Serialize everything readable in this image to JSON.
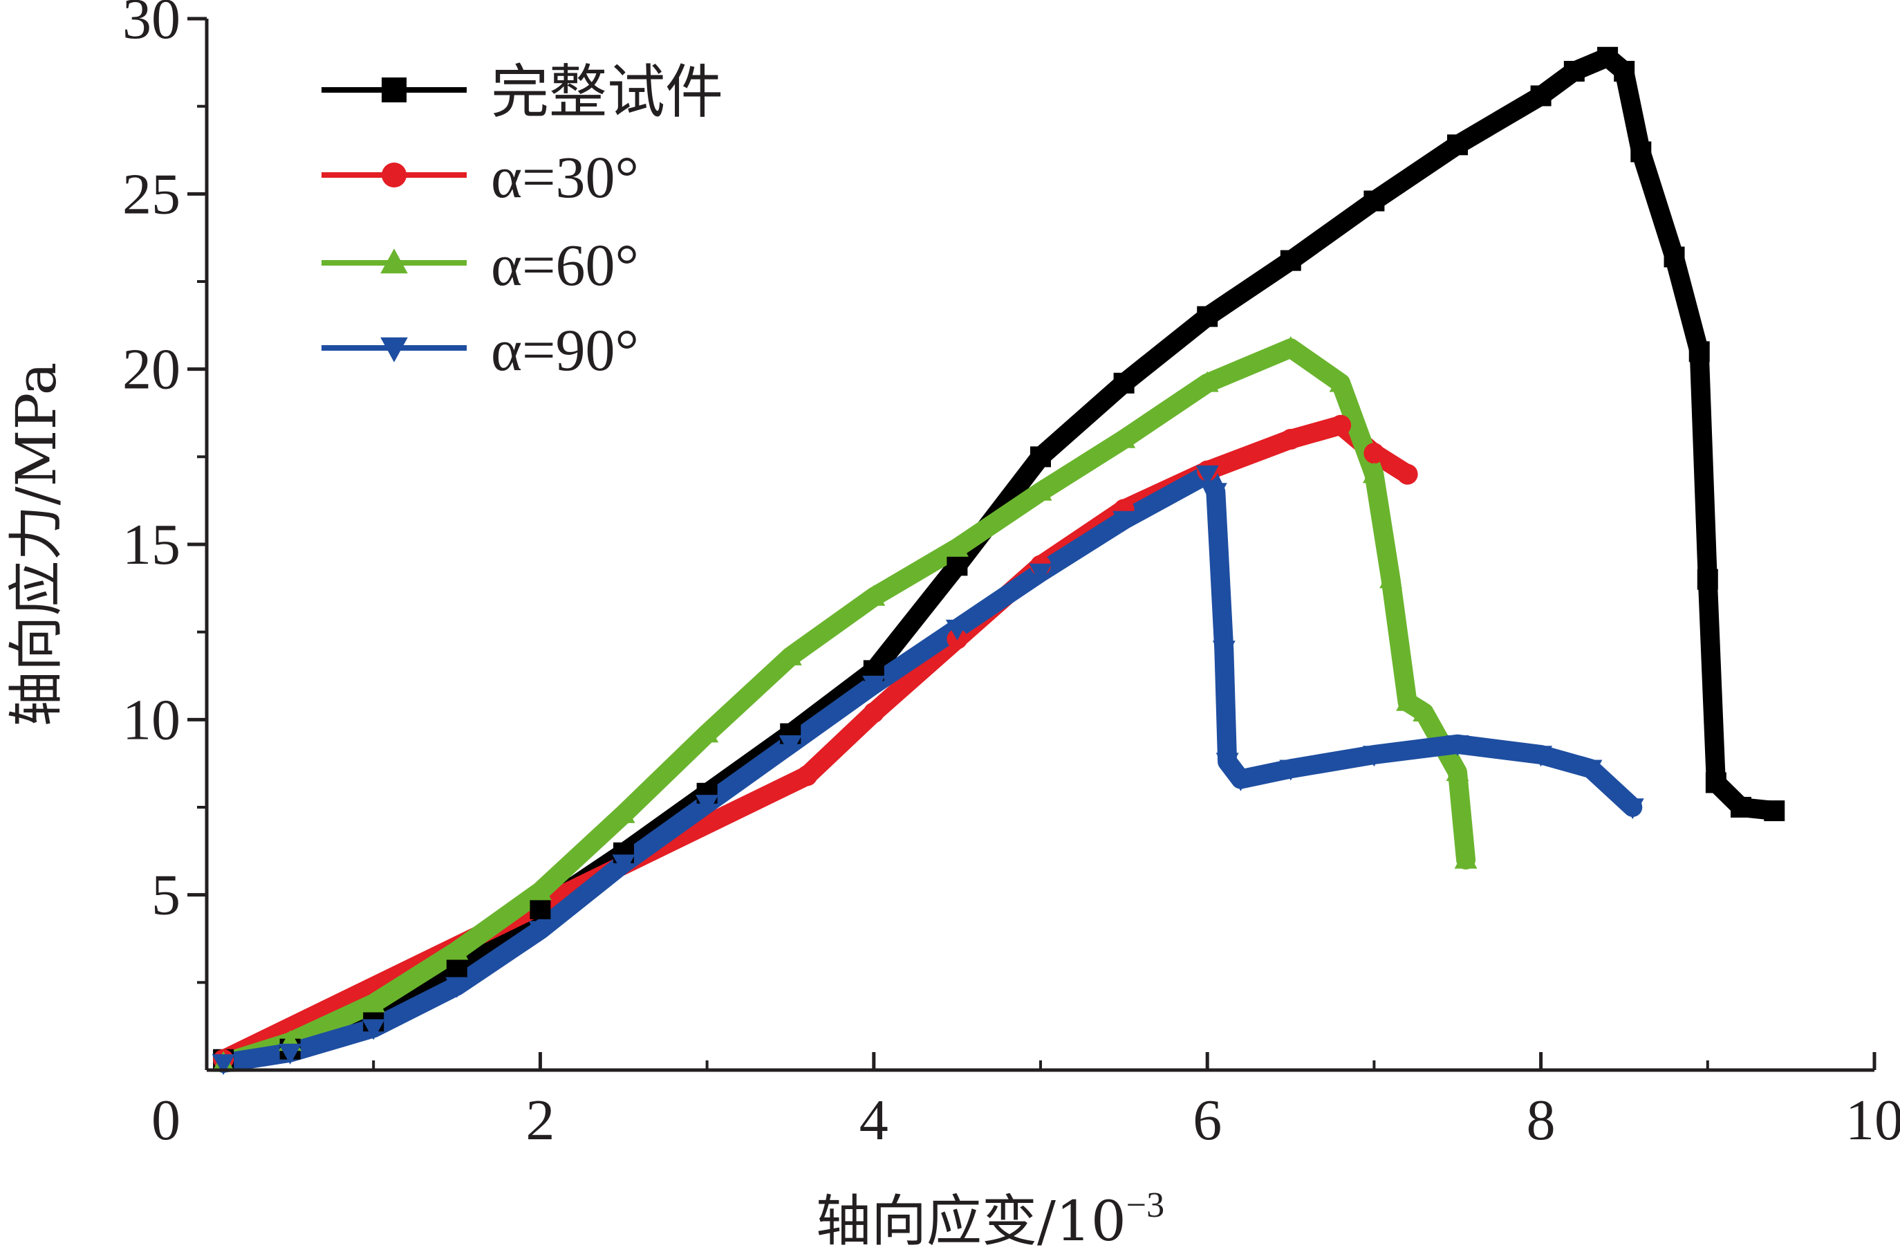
{
  "chart_data": {
    "type": "line",
    "xlabel": "轴向应变/10",
    "xlabel_exponent": "−3",
    "ylabel": "轴向应力/MPa",
    "xlim": [
      0,
      10
    ],
    "ylim": [
      0,
      30
    ],
    "x_ticks": [
      "0",
      "2",
      "4",
      "6",
      "8",
      "10"
    ],
    "y_ticks": [
      "5",
      "10",
      "15",
      "20",
      "25",
      "30"
    ],
    "grid": false,
    "legend_position": "top-left",
    "series": [
      {
        "name": "完整试件",
        "color": "#000000",
        "marker": "square",
        "x": [
          0.1,
          0.5,
          1.0,
          1.5,
          2.0,
          2.5,
          3.0,
          3.5,
          4.0,
          4.5,
          5.0,
          5.5,
          6.0,
          6.5,
          7.0,
          7.5,
          8.0,
          8.2,
          8.4,
          8.5,
          8.6,
          8.8,
          8.95,
          9.0,
          9.05,
          9.2,
          9.4
        ],
        "y": [
          0.3,
          0.6,
          1.4,
          2.9,
          4.6,
          6.2,
          7.9,
          9.6,
          11.4,
          14.4,
          17.5,
          19.6,
          21.5,
          23.1,
          24.8,
          26.4,
          27.8,
          28.5,
          28.9,
          28.5,
          26.2,
          23.2,
          20.5,
          14.0,
          8.2,
          7.5,
          7.4
        ]
      },
      {
        "name": "α=30°",
        "color": "#e31e24",
        "marker": "circle",
        "x": [
          0.1,
          3.6,
          4.0,
          4.5,
          5.0,
          5.5,
          6.0,
          6.5,
          6.8,
          7.0,
          7.2
        ],
        "y": [
          0.3,
          8.4,
          10.2,
          12.3,
          14.4,
          16.0,
          17.1,
          18.0,
          18.4,
          17.6,
          17.0
        ]
      },
      {
        "name": "α=60°",
        "color": "#6ab42d",
        "marker": "triangle-up",
        "x": [
          0.1,
          0.5,
          1.0,
          1.5,
          2.0,
          2.5,
          3.0,
          3.5,
          4.0,
          4.5,
          5.0,
          5.5,
          6.0,
          6.5,
          6.8,
          7.0,
          7.1,
          7.2,
          7.3,
          7.5,
          7.55
        ],
        "y": [
          0.2,
          0.8,
          1.9,
          3.4,
          5.1,
          7.3,
          9.6,
          11.8,
          13.5,
          14.9,
          16.5,
          18.0,
          19.6,
          20.6,
          19.6,
          17.0,
          14.0,
          10.5,
          10.2,
          8.5,
          6.0
        ]
      },
      {
        "name": "α=90°",
        "color": "#1e4ea1",
        "marker": "triangle-down",
        "x": [
          0.1,
          0.5,
          1.0,
          1.5,
          2.0,
          2.5,
          3.0,
          3.5,
          4.0,
          4.5,
          5.0,
          5.5,
          6.0,
          6.05,
          6.1,
          6.12,
          6.2,
          6.5,
          7.0,
          7.5,
          8.0,
          8.3,
          8.55
        ],
        "y": [
          0.2,
          0.5,
          1.2,
          2.4,
          4.0,
          5.9,
          7.6,
          9.3,
          11.0,
          12.6,
          14.2,
          15.7,
          17.0,
          16.5,
          12.0,
          8.8,
          8.3,
          8.6,
          9.0,
          9.3,
          9.0,
          8.6,
          7.5
        ]
      }
    ]
  }
}
